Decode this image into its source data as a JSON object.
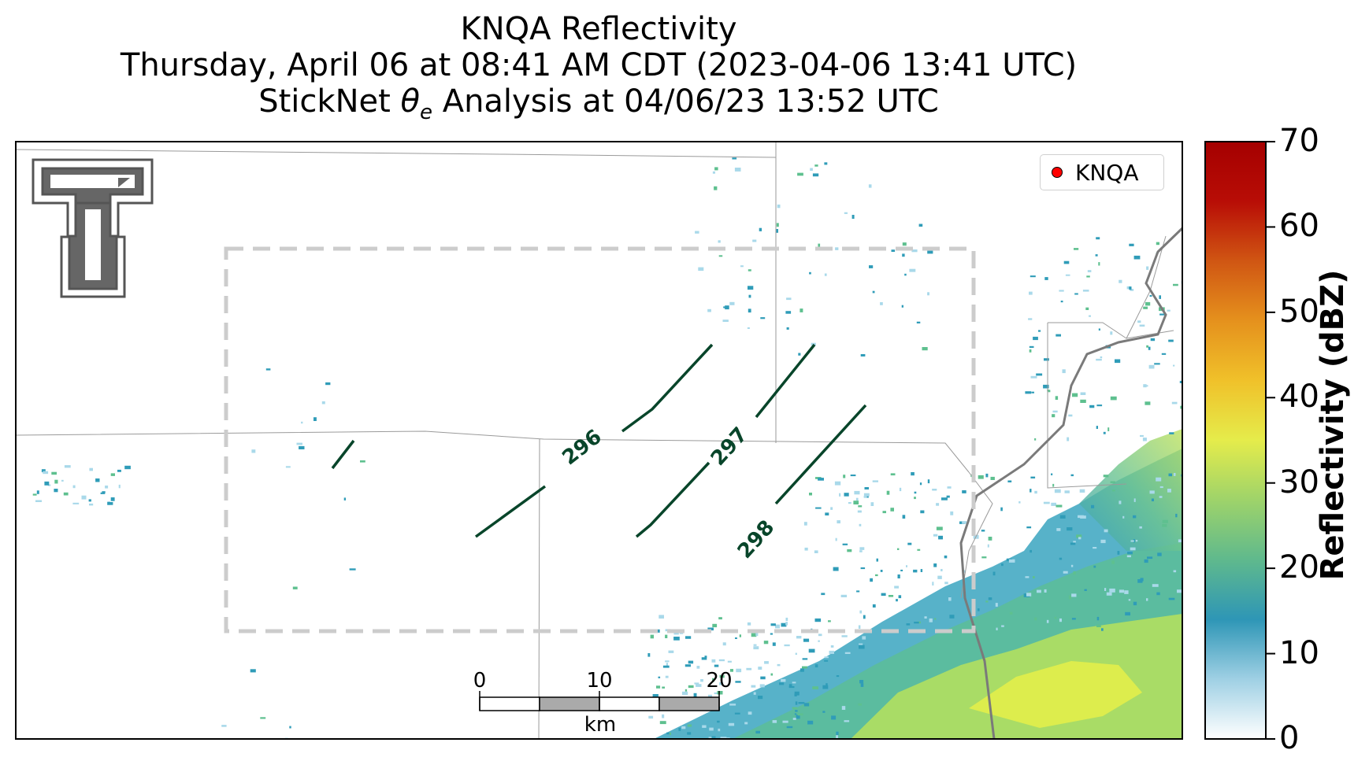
{
  "title": {
    "line1": "KNQA Reflectivity",
    "line2": "Thursday, April 06 at 08:41 AM CDT (2023-04-06 13:41 UTC)",
    "line3_prefix": "StickNet ",
    "line3_theta": "θ",
    "line3_sub": "e",
    "line3_suffix": " Analysis at 04/06/23 13:52 UTC"
  },
  "legend": {
    "label": "KNQA",
    "marker_color": "#ff0000"
  },
  "colorbar": {
    "label": "Reflectivity (dBZ)",
    "ticks": [
      "70",
      "60",
      "50",
      "40",
      "30",
      "20",
      "10",
      "0"
    ],
    "range": [
      0,
      70
    ],
    "colors": [
      "#ffffff",
      "#9fd0e4",
      "#2e96b6",
      "#5fb98d",
      "#9ed36a",
      "#e5ec4b",
      "#f0c12a",
      "#e5911d",
      "#d05613",
      "#b80d06",
      "#a50000"
    ]
  },
  "contours": {
    "variable": "theta-e",
    "color": "#08452a",
    "levels": [
      "296",
      "297",
      "298"
    ]
  },
  "scale_bar": {
    "ticks": [
      "0",
      "10",
      "20"
    ],
    "unit": "km"
  },
  "analysis_domain": {
    "style": "dashed",
    "color": "#cccccc"
  },
  "logo": {
    "name": "Texas Tech Double T",
    "lettering": "TT"
  },
  "reflectivity_colors": {
    "light": "#a9d9ea",
    "low": "#2f9cb8",
    "mid": "#5ec08f",
    "high": "#c2e45a",
    "peak": "#e5f048"
  }
}
